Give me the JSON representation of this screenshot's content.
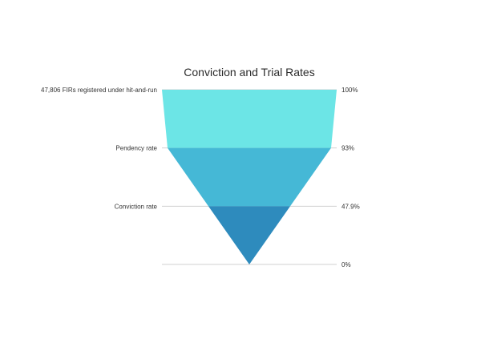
{
  "chart_data": {
    "type": "funnel",
    "title": "Conviction and Trial Rates",
    "stages": [
      {
        "label": "47,806 FIRs registered under hit-and-run",
        "value": 100,
        "value_label": "100%",
        "color": "#6ce5e6"
      },
      {
        "label": "Pendency rate",
        "value": 93,
        "value_label": "93%",
        "color": "#45b8d6"
      },
      {
        "label": "Conviction rate",
        "value": 47.9,
        "value_label": "47.9%",
        "color": "#2e8bbd"
      }
    ],
    "end": {
      "value": 0,
      "value_label": "0%"
    },
    "grid": true
  }
}
